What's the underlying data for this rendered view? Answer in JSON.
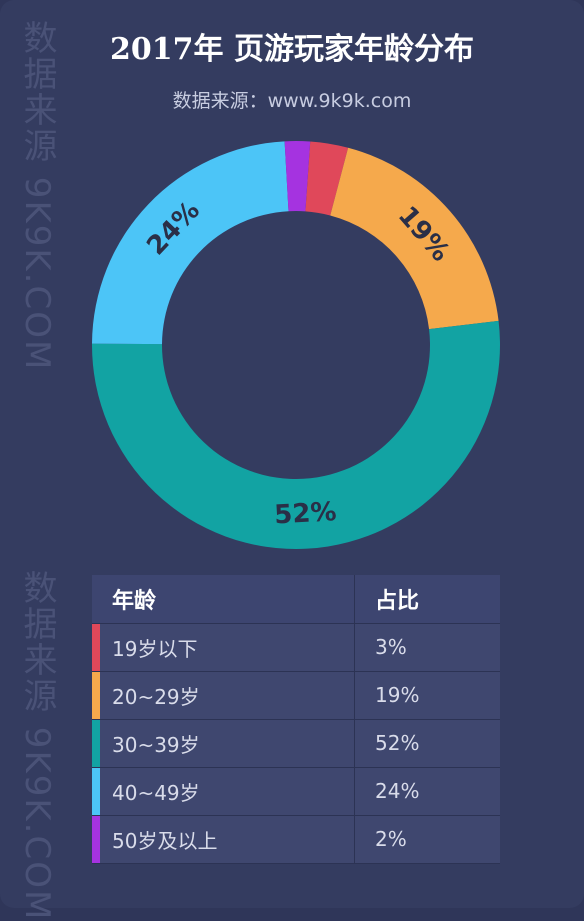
{
  "header": {
    "title": "2017年 页游玩家年龄分布",
    "subtitle": "数据来源：www.9k9k.com"
  },
  "watermarks": [
    "数据来源 9K9K.COM",
    "数据来源 9K9K.COM"
  ],
  "table": {
    "headers": [
      "年龄",
      "占比"
    ],
    "rows": [
      {
        "label": "19岁以下",
        "value": "3%",
        "color": "#e0485a"
      },
      {
        "label": "20~29岁",
        "value": "19%",
        "color": "#f5a94c"
      },
      {
        "label": "30~39岁",
        "value": "52%",
        "color": "#12a3a3"
      },
      {
        "label": "40~49岁",
        "value": "24%",
        "color": "#4cc5f7"
      },
      {
        "label": "50岁及以上",
        "value": "2%",
        "color": "#a533e0"
      }
    ]
  },
  "chart_data": {
    "type": "pie",
    "donut": true,
    "categories": [
      "19岁以下",
      "20~29岁",
      "30~39岁",
      "40~49岁",
      "50岁及以上"
    ],
    "values": [
      3,
      19,
      52,
      24,
      2
    ],
    "colors": [
      "#e0485a",
      "#f5a94c",
      "#12a3a3",
      "#4cc5f7",
      "#a533e0"
    ],
    "data_labels": [
      "",
      "19%",
      "52%",
      "24%",
      ""
    ],
    "title": "2017年 页游玩家年龄分布"
  }
}
